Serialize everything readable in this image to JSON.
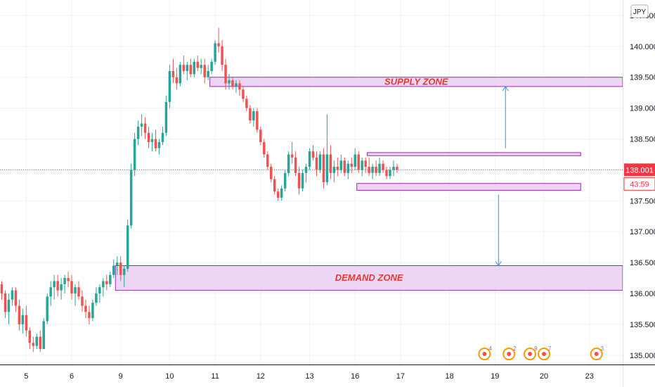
{
  "chart_data": {
    "type": "candlestick",
    "currency": "JPY",
    "y_ticks": [
      "140.500",
      "140.000",
      "139.500",
      "139.000",
      "138.500",
      "138.000",
      "137.500",
      "137.000",
      "136.500",
      "136.000",
      "135.500",
      "135.000"
    ],
    "y_tick_values": [
      140.5,
      140.0,
      139.5,
      139.0,
      138.5,
      138.0,
      137.5,
      137.0,
      136.5,
      136.0,
      135.5,
      135.0
    ],
    "ylim": [
      134.85,
      140.75
    ],
    "x_ticks": [
      "5",
      "6",
      "9",
      "10",
      "11",
      "12",
      "13",
      "16",
      "17",
      "18",
      "19",
      "20",
      "23"
    ],
    "x_tick_index": [
      7,
      20,
      34,
      48,
      61,
      74,
      88,
      101,
      114,
      128,
      141,
      155,
      168
    ],
    "x_total_index": 178,
    "last_price": {
      "label": "138.001",
      "value": 138.001,
      "countdown": "43:59",
      "color": "#f23645"
    },
    "zones": [
      {
        "label": "SUPPLY ZONE",
        "x_start": 59.5,
        "x_end": 178,
        "y_low": 139.35,
        "y_high": 139.5
      },
      {
        "label": "",
        "x_start": 104.5,
        "x_end": 165.5,
        "y_low": 138.23,
        "y_high": 138.28
      },
      {
        "label": "",
        "x_start": 101.5,
        "x_end": 165.5,
        "y_low": 137.67,
        "y_high": 137.78
      },
      {
        "label": "DEMAND ZONE",
        "x_start": 32.5,
        "x_end": 178,
        "y_low": 136.05,
        "y_high": 136.45
      }
    ],
    "arrows": [
      {
        "x": 144,
        "from": 138.35,
        "to": 139.35
      },
      {
        "x": 142,
        "from": 137.6,
        "to": 136.45
      }
    ],
    "colors": {
      "up": "#26a69a",
      "down": "#ef5350",
      "zone_fill": "#e7c8ef",
      "zone_border": "#9c27b0",
      "arrow": "#2196f3"
    },
    "event_badges": [
      {
        "x_index": 138,
        "label": "4"
      },
      {
        "x_index": 145,
        "label": "2"
      },
      {
        "x_index": 151,
        "label": "9"
      },
      {
        "x_index": 155,
        "label": "7"
      },
      {
        "x_index": 170,
        "label": "3"
      }
    ],
    "candles": [
      [
        136.15,
        136.2,
        135.9,
        136.0
      ],
      [
        136.0,
        136.05,
        135.6,
        135.7
      ],
      [
        135.7,
        136.0,
        135.5,
        135.9
      ],
      [
        135.9,
        136.1,
        135.8,
        136.05
      ],
      [
        136.05,
        136.1,
        135.7,
        135.8
      ],
      [
        135.8,
        135.9,
        135.4,
        135.5
      ],
      [
        135.5,
        135.75,
        135.35,
        135.65
      ],
      [
        135.65,
        135.8,
        135.3,
        135.4
      ],
      [
        135.4,
        135.45,
        135.1,
        135.2
      ],
      [
        135.2,
        135.3,
        135.05,
        135.15
      ],
      [
        135.15,
        135.35,
        135.1,
        135.3
      ],
      [
        135.3,
        135.4,
        135.05,
        135.1
      ],
      [
        135.1,
        135.6,
        135.1,
        135.55
      ],
      [
        135.55,
        136.0,
        135.5,
        135.95
      ],
      [
        135.95,
        136.2,
        135.8,
        136.1
      ],
      [
        136.1,
        136.3,
        135.9,
        136.2
      ],
      [
        136.2,
        136.3,
        135.95,
        136.05
      ],
      [
        136.05,
        136.25,
        135.9,
        136.15
      ],
      [
        136.15,
        136.3,
        136.0,
        136.25
      ],
      [
        136.25,
        136.35,
        136.1,
        136.2
      ],
      [
        136.2,
        136.3,
        135.9,
        136.0
      ],
      [
        136.0,
        136.15,
        135.8,
        136.1
      ],
      [
        136.1,
        136.2,
        135.9,
        135.95
      ],
      [
        135.95,
        136.05,
        135.7,
        135.8
      ],
      [
        135.8,
        135.9,
        135.6,
        135.7
      ],
      [
        135.7,
        135.8,
        135.5,
        135.6
      ],
      [
        135.6,
        135.9,
        135.55,
        135.85
      ],
      [
        135.85,
        136.1,
        135.8,
        136.0
      ],
      [
        136.0,
        136.15,
        135.85,
        136.1
      ],
      [
        136.1,
        136.25,
        135.95,
        136.2
      ],
      [
        136.2,
        136.3,
        136.05,
        136.15
      ],
      [
        136.15,
        136.35,
        136.1,
        136.3
      ],
      [
        136.3,
        136.55,
        136.25,
        136.45
      ],
      [
        136.45,
        136.6,
        136.3,
        136.5
      ],
      [
        136.5,
        136.6,
        136.2,
        136.3
      ],
      [
        136.3,
        136.45,
        136.1,
        136.4
      ],
      [
        136.4,
        137.2,
        136.35,
        137.1
      ],
      [
        137.1,
        138.1,
        137.05,
        138.0
      ],
      [
        138.0,
        138.6,
        137.9,
        138.5
      ],
      [
        138.5,
        138.8,
        138.4,
        138.7
      ],
      [
        138.7,
        138.9,
        138.55,
        138.75
      ],
      [
        138.75,
        138.85,
        138.5,
        138.6
      ],
      [
        138.6,
        138.7,
        138.35,
        138.45
      ],
      [
        138.45,
        138.6,
        138.3,
        138.5
      ],
      [
        138.5,
        138.65,
        138.3,
        138.35
      ],
      [
        138.35,
        138.5,
        138.25,
        138.45
      ],
      [
        138.45,
        138.7,
        138.4,
        138.6
      ],
      [
        138.6,
        139.2,
        138.55,
        139.1
      ],
      [
        139.1,
        139.7,
        139.0,
        139.6
      ],
      [
        139.6,
        139.8,
        139.4,
        139.5
      ],
      [
        139.5,
        139.65,
        139.3,
        139.4
      ],
      [
        139.4,
        139.75,
        139.35,
        139.7
      ],
      [
        139.7,
        139.85,
        139.55,
        139.6
      ],
      [
        139.6,
        139.75,
        139.45,
        139.7
      ],
      [
        139.7,
        139.8,
        139.5,
        139.55
      ],
      [
        139.55,
        139.8,
        139.5,
        139.75
      ],
      [
        139.75,
        139.85,
        139.6,
        139.65
      ],
      [
        139.65,
        139.8,
        139.55,
        139.7
      ],
      [
        139.7,
        139.8,
        139.4,
        139.5
      ],
      [
        139.5,
        139.7,
        139.45,
        139.6
      ],
      [
        139.6,
        139.8,
        139.55,
        139.75
      ],
      [
        139.75,
        140.1,
        139.7,
        140.05
      ],
      [
        140.05,
        140.3,
        139.9,
        140.0
      ],
      [
        140.0,
        140.1,
        139.6,
        139.7
      ],
      [
        139.7,
        139.8,
        139.3,
        139.4
      ],
      [
        139.4,
        139.55,
        139.3,
        139.45
      ],
      [
        139.45,
        139.5,
        139.3,
        139.35
      ],
      [
        139.35,
        139.45,
        139.25,
        139.4
      ],
      [
        139.4,
        139.45,
        139.2,
        139.3
      ],
      [
        139.3,
        139.35,
        139.1,
        139.15
      ],
      [
        139.15,
        139.2,
        138.95,
        139.0
      ],
      [
        139.0,
        139.05,
        138.75,
        138.8
      ],
      [
        138.8,
        139.0,
        138.7,
        138.95
      ],
      [
        138.95,
        139.0,
        138.6,
        138.65
      ],
      [
        138.65,
        138.7,
        138.4,
        138.45
      ],
      [
        138.45,
        138.5,
        138.2,
        138.25
      ],
      [
        138.25,
        138.3,
        138.0,
        138.05
      ],
      [
        138.05,
        138.1,
        137.8,
        137.85
      ],
      [
        137.85,
        137.9,
        137.6,
        137.65
      ],
      [
        137.65,
        137.7,
        137.5,
        137.55
      ],
      [
        137.55,
        137.75,
        137.5,
        137.7
      ],
      [
        137.7,
        138.0,
        137.65,
        137.95
      ],
      [
        137.95,
        138.3,
        137.9,
        138.25
      ],
      [
        138.25,
        138.45,
        138.1,
        138.2
      ],
      [
        138.2,
        138.3,
        137.9,
        137.95
      ],
      [
        137.95,
        138.05,
        137.6,
        137.7
      ],
      [
        137.7,
        138.0,
        137.65,
        137.95
      ],
      [
        137.95,
        138.1,
        137.8,
        138.05
      ],
      [
        138.05,
        138.35,
        138.0,
        138.3
      ],
      [
        138.3,
        138.4,
        138.15,
        138.2
      ],
      [
        138.2,
        138.3,
        137.9,
        138.0
      ],
      [
        138.0,
        138.3,
        137.95,
        138.25
      ],
      [
        138.25,
        138.35,
        137.7,
        137.8
      ],
      [
        137.8,
        138.9,
        137.75,
        138.25
      ],
      [
        138.25,
        138.4,
        137.85,
        137.95
      ],
      [
        137.95,
        138.15,
        137.8,
        138.05
      ],
      [
        138.05,
        138.2,
        137.9,
        138.0
      ],
      [
        138.0,
        138.25,
        137.95,
        138.15
      ],
      [
        138.15,
        138.2,
        137.9,
        137.95
      ],
      [
        137.95,
        138.15,
        137.85,
        138.1
      ],
      [
        138.1,
        138.2,
        137.95,
        138.05
      ],
      [
        138.05,
        138.35,
        138.0,
        138.25
      ],
      [
        138.25,
        138.3,
        137.95,
        138.0
      ],
      [
        138.0,
        138.2,
        137.9,
        138.15
      ],
      [
        138.15,
        138.2,
        137.95,
        138.05
      ],
      [
        138.05,
        138.2,
        137.9,
        137.95
      ],
      [
        137.95,
        138.1,
        137.85,
        138.05
      ],
      [
        138.05,
        138.15,
        137.9,
        137.95
      ],
      [
        137.95,
        138.2,
        137.9,
        138.1
      ],
      [
        138.1,
        138.15,
        137.95,
        138.0
      ],
      [
        138.0,
        138.05,
        137.85,
        137.9
      ],
      [
        137.9,
        138.05,
        137.85,
        138.0
      ],
      [
        138.0,
        138.15,
        137.9,
        138.05
      ],
      [
        138.05,
        138.1,
        137.95,
        138.0
      ]
    ]
  }
}
